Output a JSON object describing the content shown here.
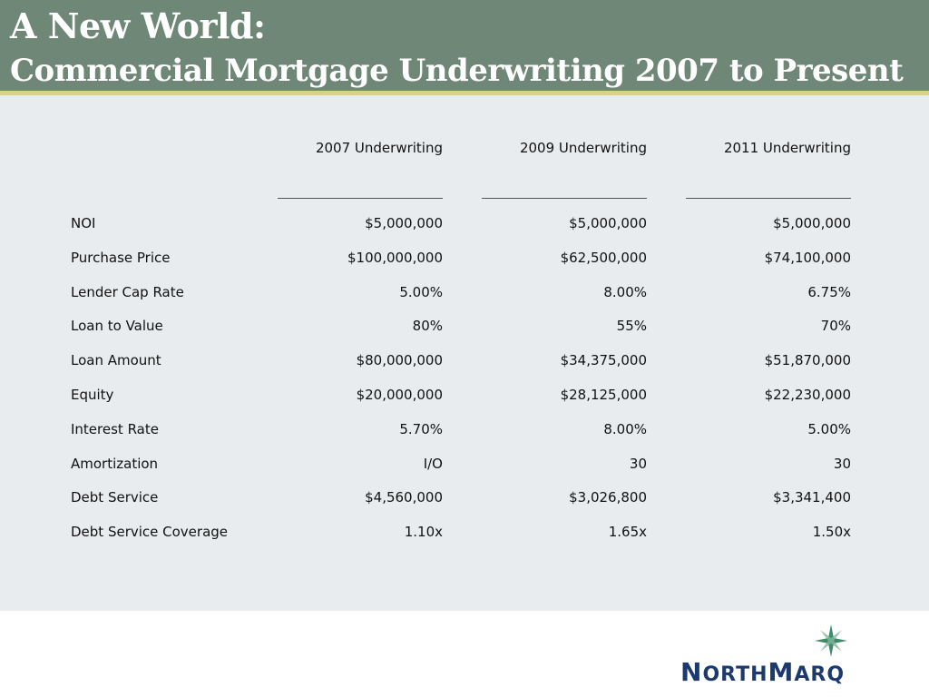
{
  "header": {
    "title_line1": "A New World:",
    "title_line2": "Commercial Mortgage Underwriting 2007 to Present"
  },
  "table": {
    "columns": [
      "2007 Underwriting",
      "2009 Underwriting",
      "2011 Underwriting"
    ],
    "rows": [
      {
        "label": "NOI",
        "values": [
          "$5,000,000",
          "$5,000,000",
          "$5,000,000"
        ]
      },
      {
        "label": "Purchase Price",
        "values": [
          "$100,000,000",
          "$62,500,000",
          "$74,100,000"
        ]
      },
      {
        "label": "Lender Cap Rate",
        "values": [
          "5.00%",
          "8.00%",
          "6.75%"
        ]
      },
      {
        "label": "Loan to Value",
        "values": [
          "80%",
          "55%",
          "70%"
        ]
      },
      {
        "label": "Loan Amount",
        "values": [
          "$80,000,000",
          "$34,375,000",
          "$51,870,000"
        ]
      },
      {
        "label": "Equity",
        "values": [
          "$20,000,000",
          "$28,125,000",
          "$22,230,000"
        ]
      },
      {
        "label": "Interest Rate",
        "values": [
          "5.70%",
          "8.00%",
          "5.00%"
        ]
      },
      {
        "label": "Amortization",
        "values": [
          "I/O",
          "30",
          "30"
        ]
      },
      {
        "label": "Debt Service",
        "values": [
          "$4,560,000",
          "$3,026,800",
          "$3,341,400"
        ]
      },
      {
        "label": "Debt Service Coverage",
        "values": [
          "1.10x",
          "1.65x",
          "1.50x"
        ]
      }
    ]
  },
  "logo": {
    "text": "NorthMarq",
    "icon": "compass-star-icon"
  },
  "colors": {
    "header_bg": "#6e8776",
    "header_rule": "#d9d08a",
    "panel_bg": "#e9ecef",
    "logo_blue": "#1c3a6e",
    "logo_green": "#3e8a6a"
  }
}
